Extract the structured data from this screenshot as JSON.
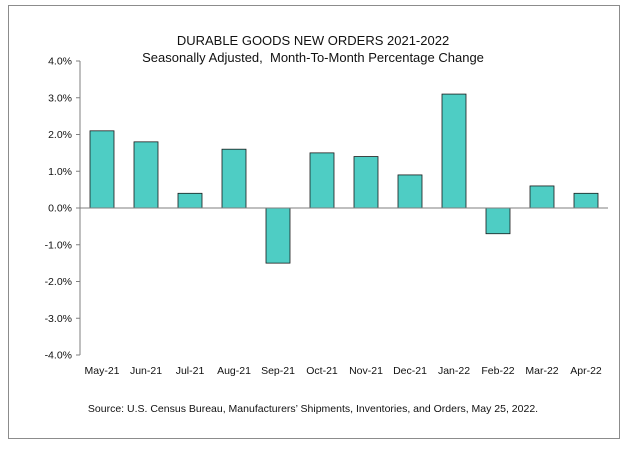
{
  "chart_data": {
    "type": "bar",
    "title": "DURABLE GOODS NEW ORDERS 2021-2022",
    "subtitle": "Seasonally Adjusted,  Month-To-Month Percentage Change",
    "categories": [
      "May-21",
      "Jun-21",
      "Jul-21",
      "Aug-21",
      "Sep-21",
      "Oct-21",
      "Nov-21",
      "Dec-21",
      "Jan-22",
      "Feb-22",
      "Mar-22",
      "Apr-22"
    ],
    "values": [
      2.1,
      1.8,
      0.4,
      1.6,
      -1.5,
      1.5,
      1.4,
      0.9,
      3.1,
      -0.7,
      0.6,
      0.4
    ],
    "ylim": [
      -4.0,
      4.0
    ],
    "yticks": [
      4.0,
      3.0,
      2.0,
      1.0,
      0.0,
      -1.0,
      -2.0,
      -3.0,
      -4.0
    ],
    "ytick_labels": [
      "4.0%",
      "3.0%",
      "2.0%",
      "1.0%",
      "0.0%",
      "-1.0%",
      "-2.0%",
      "-3.0%",
      "-4.0%"
    ],
    "xlabel": "",
    "ylabel": "",
    "grid": false,
    "bar_color": "#4ecdc4",
    "source": "Source: U.S. Census Bureau, Manufacturers’ Shipments, Inventories, and Orders, May 25, 2022."
  }
}
